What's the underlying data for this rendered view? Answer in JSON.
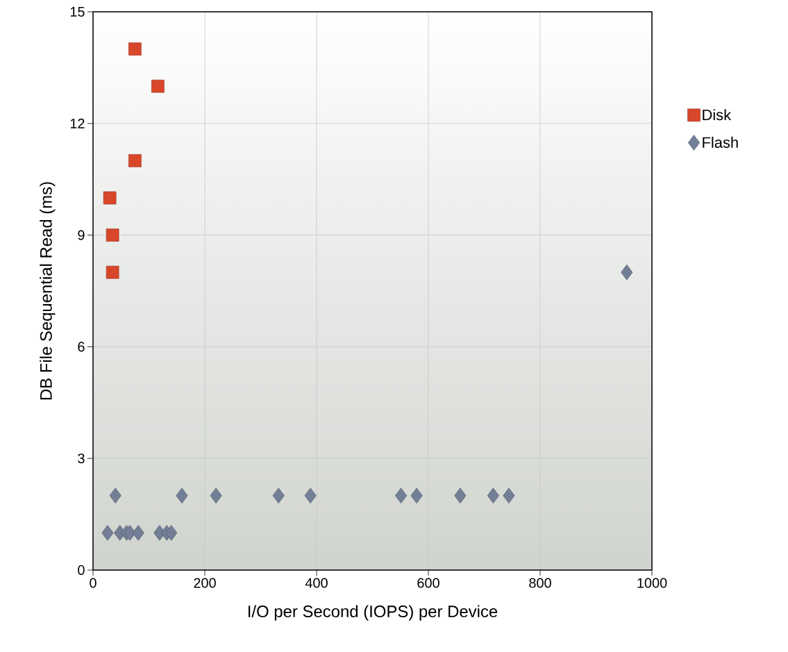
{
  "chart_data": {
    "type": "scatter",
    "xlabel": "I/O per Second (IOPS) per Device",
    "ylabel": "DB File Sequential Read (ms)",
    "xlim": [
      0,
      1000
    ],
    "xticks": [
      0,
      200,
      400,
      600,
      800,
      1000
    ],
    "ylim": [
      0,
      15
    ],
    "yticks": [
      0,
      3,
      6,
      9,
      12,
      15
    ],
    "grid": true,
    "legend": "right",
    "series": [
      {
        "name": "Disk",
        "color": "#d9472b",
        "marker": "square",
        "x": [
          75,
          116,
          75,
          30,
          35,
          35
        ],
        "values": [
          14,
          13,
          11,
          10,
          9,
          8
        ]
      },
      {
        "name": "Flash",
        "color": "#737f96",
        "marker": "diamond",
        "x": [
          955,
          40,
          159,
          220,
          332,
          389,
          551,
          579,
          657,
          716,
          744,
          26,
          48,
          60,
          66,
          81,
          119,
          132,
          140
        ],
        "values": [
          8,
          2,
          2,
          2,
          2,
          2,
          2,
          2,
          2,
          2,
          2,
          1,
          1,
          1,
          1,
          1,
          1,
          1,
          1
        ]
      }
    ]
  }
}
